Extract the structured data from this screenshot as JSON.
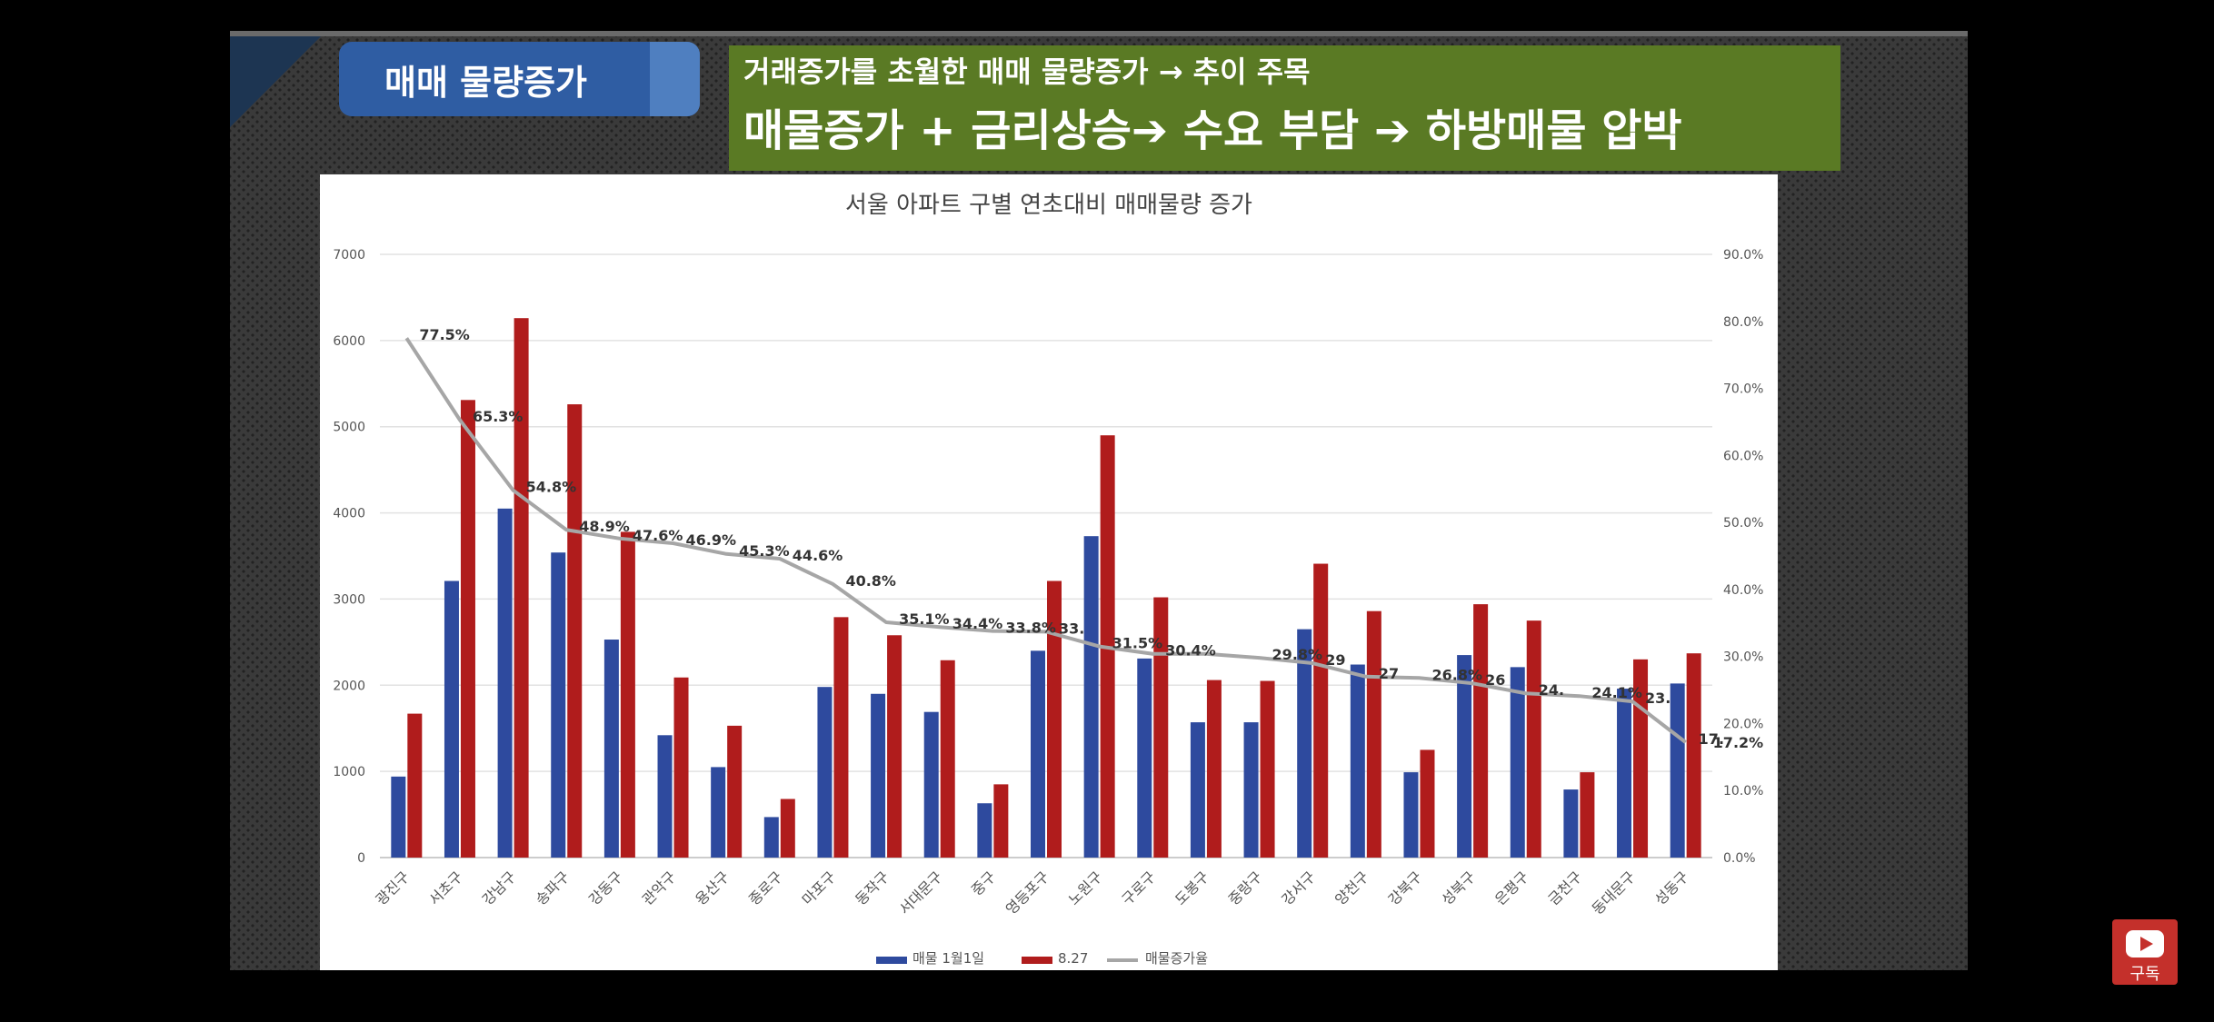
{
  "slide": {
    "title": "매매 물량증가",
    "headline_line1": "거래증가를 초월한 매매 물량증가 → 추이 주목",
    "headline_line2": "매물증가 + 금리상승➔ 수요 부담 ➔ 하방매물 압박"
  },
  "subscribe": {
    "label": "구독"
  },
  "colors": {
    "series1": "#2e4a9e",
    "series2": "#b01c1c",
    "line": "#a6a6a6",
    "headline_bg": "#5a7a24",
    "title_bg": "#2f5da3"
  },
  "chart_data": {
    "type": "bar",
    "title": "서울 아파트 구별 연초대비 매매물량 증가",
    "categories": [
      "광진구",
      "서초구",
      "강남구",
      "송파구",
      "강동구",
      "관악구",
      "용산구",
      "종로구",
      "마포구",
      "동작구",
      "서대문구",
      "중구",
      "영등포구",
      "노원구",
      "구로구",
      "도봉구",
      "중랑구",
      "강서구",
      "양천구",
      "강북구",
      "성북구",
      "은평구",
      "금천구",
      "동대문구",
      "성동구"
    ],
    "series": [
      {
        "name": "매물 1월1일",
        "axis": "left",
        "kind": "bar",
        "values": [
          940,
          3210,
          4050,
          3540,
          2530,
          1420,
          1050,
          470,
          1980,
          1900,
          1690,
          630,
          2400,
          3730,
          2310,
          1570,
          1570,
          2650,
          2240,
          990,
          2350,
          2210,
          790,
          1960,
          2020
        ]
      },
      {
        "name": "8.27",
        "axis": "right_bars",
        "kind": "bar",
        "values": [
          1670,
          5310,
          6260,
          5260,
          3780,
          2090,
          1530,
          680,
          2790,
          2580,
          2290,
          850,
          3210,
          4900,
          3020,
          2060,
          2050,
          3410,
          2860,
          1250,
          2940,
          2750,
          990,
          2300,
          2370
        ]
      },
      {
        "name": "매물증가율",
        "axis": "right",
        "kind": "line",
        "values": [
          77.5,
          65.3,
          54.8,
          48.9,
          47.6,
          46.9,
          45.3,
          44.6,
          40.8,
          35.1,
          34.4,
          33.8,
          33.7,
          31.5,
          30.4,
          30.4,
          29.8,
          29.0,
          27.0,
          26.8,
          26.0,
          24.5,
          24.1,
          23.3,
          17.2
        ]
      }
    ],
    "data_labels": [
      "77.5%",
      "65.3%",
      "54.8%",
      "48.9%",
      "47.6%",
      "46.9%",
      "45.3%",
      "44.6%",
      "40.8%",
      "35.1%",
      "34.4%",
      "33.8%",
      "33.",
      "31.5%",
      "30.4%",
      "",
      "29.8%",
      "29",
      "27",
      "26.8%",
      "26",
      "24.",
      "24.1%",
      "23.",
      "17."
    ],
    "last_label": "17.2%",
    "ylim": [
      0,
      7000
    ],
    "y_ticks": [
      "0",
      "1000",
      "2000",
      "3000",
      "4000",
      "5000",
      "6000",
      "7000"
    ],
    "y2lim": [
      0,
      90
    ],
    "y2_ticks": [
      "0.0%",
      "10.0%",
      "20.0%",
      "30.0%",
      "40.0%",
      "50.0%",
      "60.0%",
      "70.0%",
      "80.0%",
      "90.0%"
    ],
    "grid": true,
    "legend_position": "bottom"
  }
}
